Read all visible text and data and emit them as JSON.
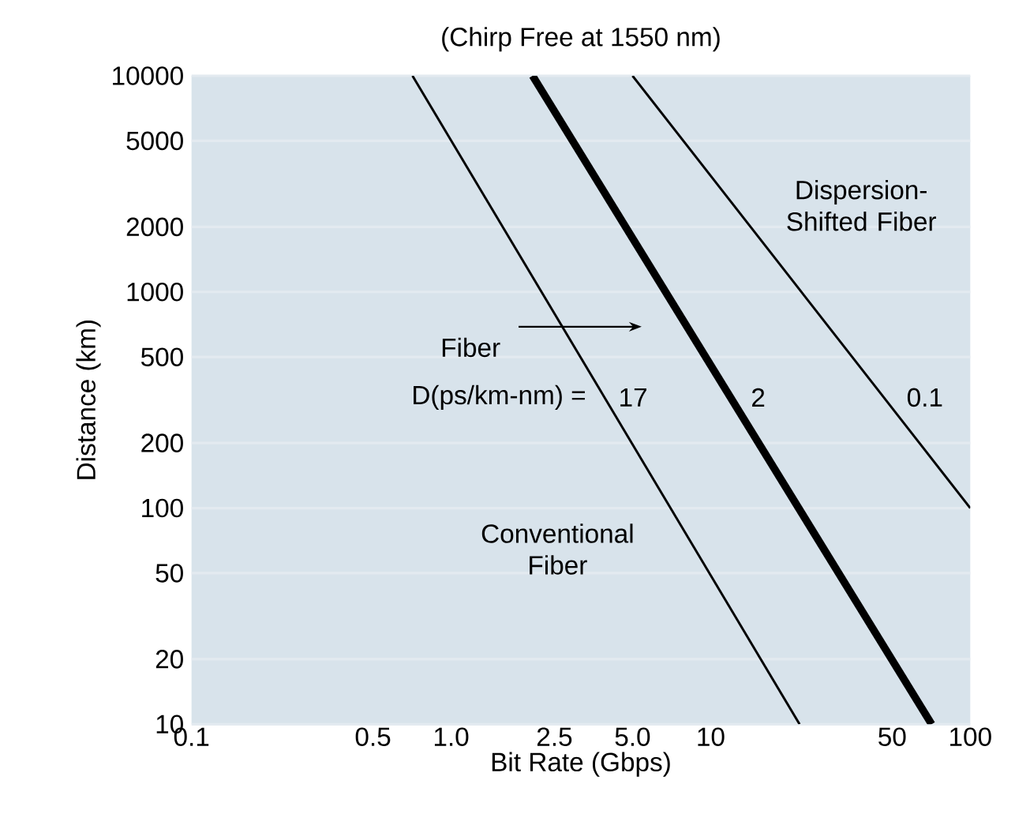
{
  "chart_data": {
    "type": "line",
    "title": "(Chirp Free at 1550 nm)",
    "xlabel": "Bit Rate (Gbps)",
    "ylabel": "Distance (km)",
    "log": "xy",
    "grid": "y",
    "marker": "none",
    "line_style": "solid",
    "xlim": [
      0.1,
      100
    ],
    "ylim": [
      10,
      10000
    ],
    "xticks": [
      0.1,
      0.5,
      {
        "value": 1,
        "label": "1.0"
      },
      2.5,
      {
        "value": 5,
        "label": "5.0"
      },
      10,
      50,
      100
    ],
    "yticks": [
      10,
      20,
      50,
      100,
      200,
      500,
      1000,
      2000,
      5000,
      10000
    ],
    "series": [
      {
        "color": "#000000",
        "x": [
          0.71,
          22
        ],
        "values": [
          10000,
          10
        ]
      },
      {
        "color": "#000000",
        "x": [
          2.06,
          71
        ],
        "values": [
          10000,
          10
        ]
      },
      {
        "color": "#000000",
        "x": [
          5,
          100
        ],
        "values": [
          10000,
          100
        ]
      }
    ],
    "annotations": [
      "Dispersion-Shifted Fiber",
      "Fiber",
      "D(ps/km-nm) =",
      "17",
      "2",
      "0.1",
      "Conventional Fiber"
    ]
  }
}
